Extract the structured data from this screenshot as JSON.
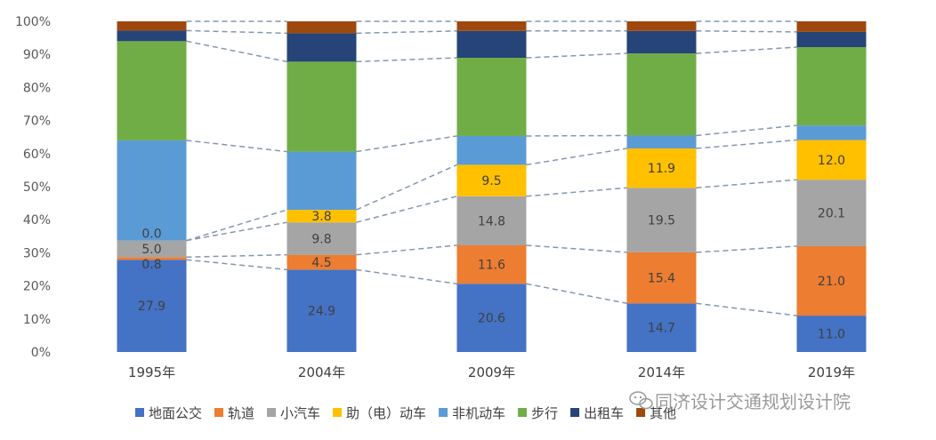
{
  "chart_data": {
    "type": "bar",
    "stacked": true,
    "normalized_percent": true,
    "categories": [
      "1995年",
      "2004年",
      "2009年",
      "2014年",
      "2019年"
    ],
    "ylim": [
      0,
      100
    ],
    "yticks": [
      "0%",
      "10%",
      "20%",
      "30%",
      "40%",
      "50%",
      "60%",
      "70%",
      "80%",
      "90%",
      "100%"
    ],
    "grid": false,
    "legend_position": "bottom",
    "series": [
      {
        "name": "地面公交",
        "color": "#4472C4",
        "values": [
          27.9,
          24.9,
          20.6,
          14.7,
          11.0
        ],
        "labels": [
          "27.9",
          "24.9",
          "20.6",
          "14.7",
          "11.0"
        ]
      },
      {
        "name": "轨道",
        "color": "#ED7D31",
        "values": [
          0.8,
          4.5,
          11.6,
          15.4,
          21.0
        ],
        "labels": [
          "0.8",
          "4.5",
          "11.6",
          "15.4",
          "21.0"
        ]
      },
      {
        "name": "小汽车",
        "color": "#A5A5A5",
        "values": [
          5.0,
          9.8,
          14.8,
          19.5,
          20.1
        ],
        "labels": [
          "5.0",
          "9.8",
          "14.8",
          "19.5",
          "20.1"
        ]
      },
      {
        "name": "助（电）动车",
        "color": "#FFC000",
        "values": [
          0.0,
          3.8,
          9.5,
          11.9,
          12.0
        ],
        "labels": [
          "0.0",
          "3.8",
          "9.5",
          "11.9",
          "12.0"
        ]
      },
      {
        "name": "非机动车",
        "color": "#5B9BD5",
        "values": [
          30.3,
          17.6,
          8.7,
          3.9,
          4.4
        ],
        "labels": [
          "",
          "",
          "",
          "",
          ""
        ]
      },
      {
        "name": "步行",
        "color": "#70AD47",
        "values": [
          30.0,
          27.2,
          23.6,
          24.8,
          23.7
        ],
        "labels": [
          "",
          "",
          "",
          "",
          ""
        ]
      },
      {
        "name": "出租车",
        "color": "#264478",
        "values": [
          3.2,
          8.6,
          8.1,
          6.8,
          4.6
        ],
        "labels": [
          "",
          "",
          "",
          "",
          ""
        ]
      },
      {
        "name": "其他",
        "color": "#9E480E",
        "values": [
          2.8,
          3.6,
          2.9,
          2.9,
          3.2
        ],
        "labels": [
          "",
          "",
          "",
          "",
          ""
        ]
      }
    ]
  },
  "watermark": {
    "text": "同济设计交通规划设计院"
  }
}
